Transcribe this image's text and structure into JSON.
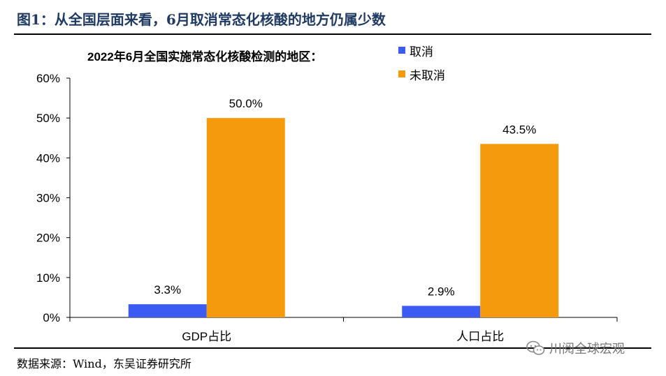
{
  "figure": {
    "title": "图1：从全国层面来看，6月取消常态化核酸的地方仍属少数",
    "source": "数据来源：Wind，东吴证券研究所",
    "watermark": "川阅全球宏观",
    "watermark_icon": "wechat-icon"
  },
  "colors": {
    "cancelled": "#3c5bf2",
    "not_cancelled": "#f59a0d",
    "title": "#1f3a63"
  },
  "chart_data": {
    "type": "bar",
    "title": "2022年6月全国实施常态化核酸检测的地区：",
    "categories": [
      "GDP占比",
      "人口占比"
    ],
    "series": [
      {
        "name": "取消",
        "values": [
          3.3,
          2.9
        ],
        "labels": [
          "3.3%",
          "2.9%"
        ]
      },
      {
        "name": "未取消",
        "values": [
          50.0,
          43.5
        ],
        "labels": [
          "50.0%",
          "43.5%"
        ]
      }
    ],
    "ylim": [
      0,
      60
    ],
    "yticks": [
      "0%",
      "10%",
      "20%",
      "30%",
      "40%",
      "50%",
      "60%"
    ],
    "grid": false,
    "legend": "top-right",
    "xlabel": "",
    "ylabel": ""
  }
}
